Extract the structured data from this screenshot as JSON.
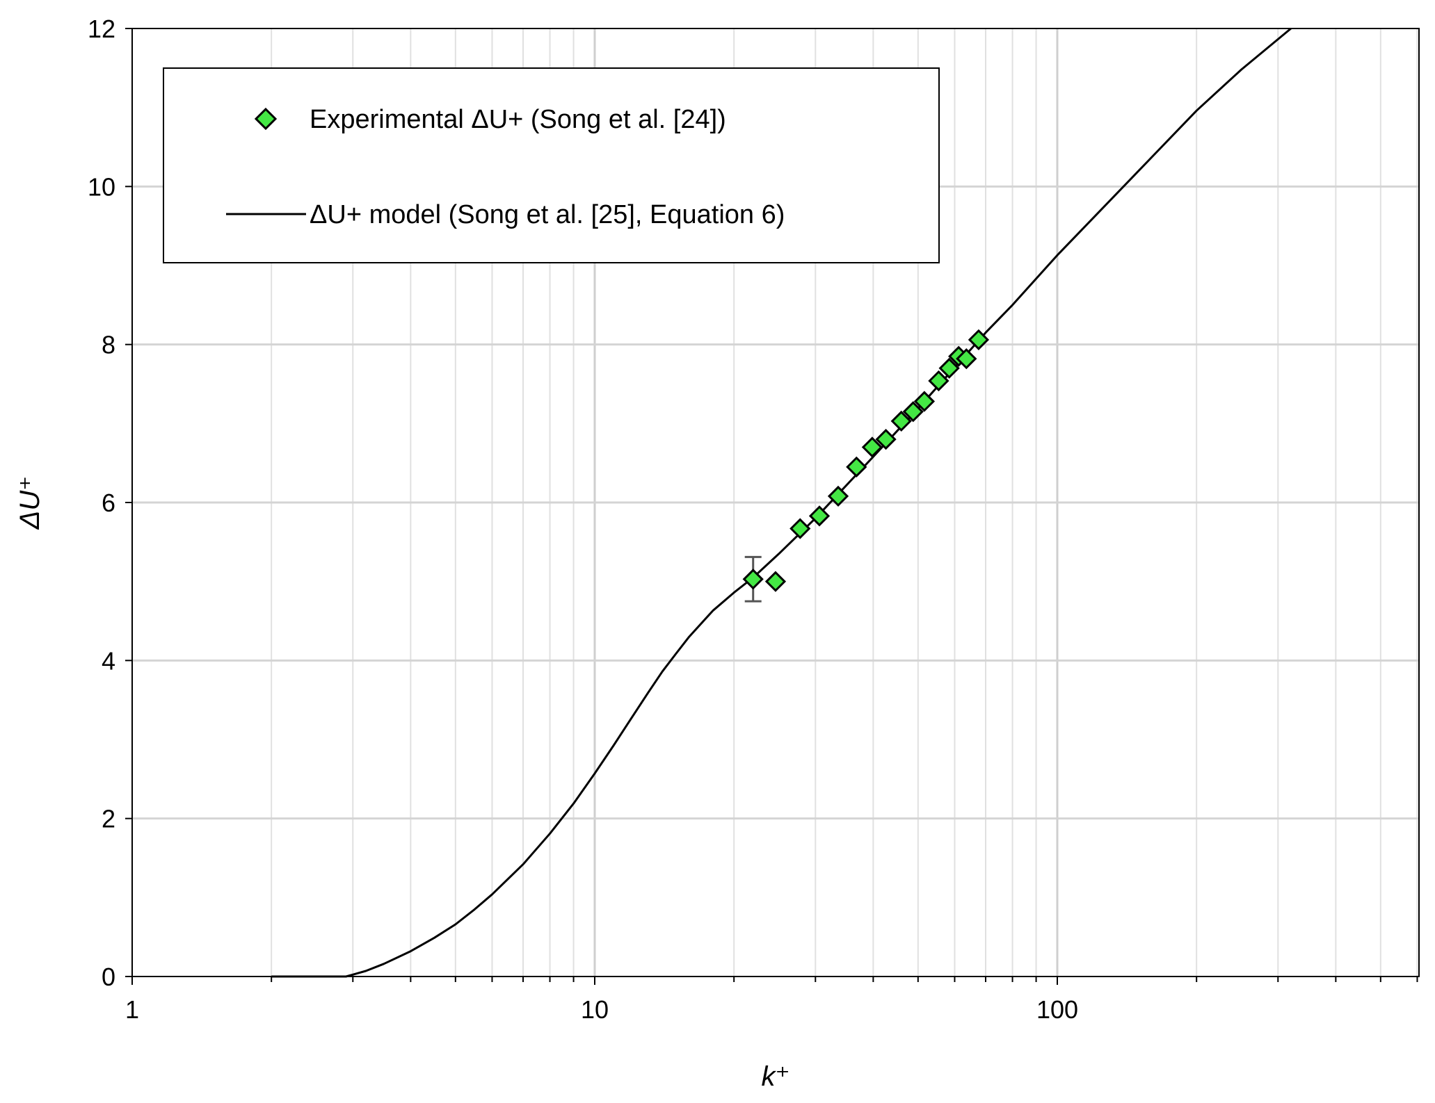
{
  "chart_data": {
    "type": "scatter",
    "xscale": "log",
    "xlim": [
      1,
      700
    ],
    "ylim": [
      0,
      12
    ],
    "xlabel": "k⁺",
    "ylabel": "ΔU⁺",
    "x_ticks": [
      1,
      10,
      100
    ],
    "x_tick_labels": [
      "1",
      "10",
      "100"
    ],
    "y_ticks": [
      0,
      2,
      4,
      6,
      8,
      10,
      12
    ],
    "y_tick_labels": [
      "0",
      "2",
      "4",
      "6",
      "8",
      "10",
      "12"
    ],
    "grid": true,
    "legend_position": "top-left",
    "series": [
      {
        "name": "Experimental ΔU+ (Song et al. [24])",
        "kind": "scatter",
        "marker": "diamond",
        "color": "#44e744",
        "points": [
          {
            "x": 22.0,
            "y": 5.03,
            "error": 0.28
          },
          {
            "x": 24.6,
            "y": 5.0
          },
          {
            "x": 27.8,
            "y": 5.67
          },
          {
            "x": 30.6,
            "y": 5.83
          },
          {
            "x": 33.6,
            "y": 6.08
          },
          {
            "x": 36.8,
            "y": 6.45
          },
          {
            "x": 39.8,
            "y": 6.7
          },
          {
            "x": 42.6,
            "y": 6.8
          },
          {
            "x": 46.0,
            "y": 7.03
          },
          {
            "x": 48.8,
            "y": 7.15
          },
          {
            "x": 51.6,
            "y": 7.28
          },
          {
            "x": 55.4,
            "y": 7.54
          },
          {
            "x": 58.4,
            "y": 7.7
          },
          {
            "x": 61.2,
            "y": 7.85
          },
          {
            "x": 63.6,
            "y": 7.82
          },
          {
            "x": 67.6,
            "y": 8.06
          }
        ]
      },
      {
        "name": "ΔU+ model (Song et al. [25], Equation 6)",
        "kind": "line",
        "color": "#000000",
        "x": [
          2,
          2.5,
          2.9,
          3.2,
          3.5,
          4,
          4.5,
          5,
          5.5,
          6,
          7,
          8,
          9,
          10,
          11,
          12,
          13,
          14,
          15,
          16,
          18,
          20,
          22,
          25,
          30,
          40,
          50,
          60,
          70,
          80,
          100,
          150,
          200,
          250,
          320
        ],
        "y": [
          0,
          0,
          0,
          0.07,
          0.16,
          0.32,
          0.49,
          0.66,
          0.85,
          1.04,
          1.42,
          1.81,
          2.19,
          2.57,
          2.93,
          3.27,
          3.58,
          3.86,
          4.09,
          4.3,
          4.63,
          4.86,
          5.05,
          5.35,
          5.8,
          6.58,
          7.19,
          7.71,
          8.15,
          8.5,
          9.13,
          10.2,
          10.96,
          11.48,
          12.0
        ]
      }
    ]
  }
}
